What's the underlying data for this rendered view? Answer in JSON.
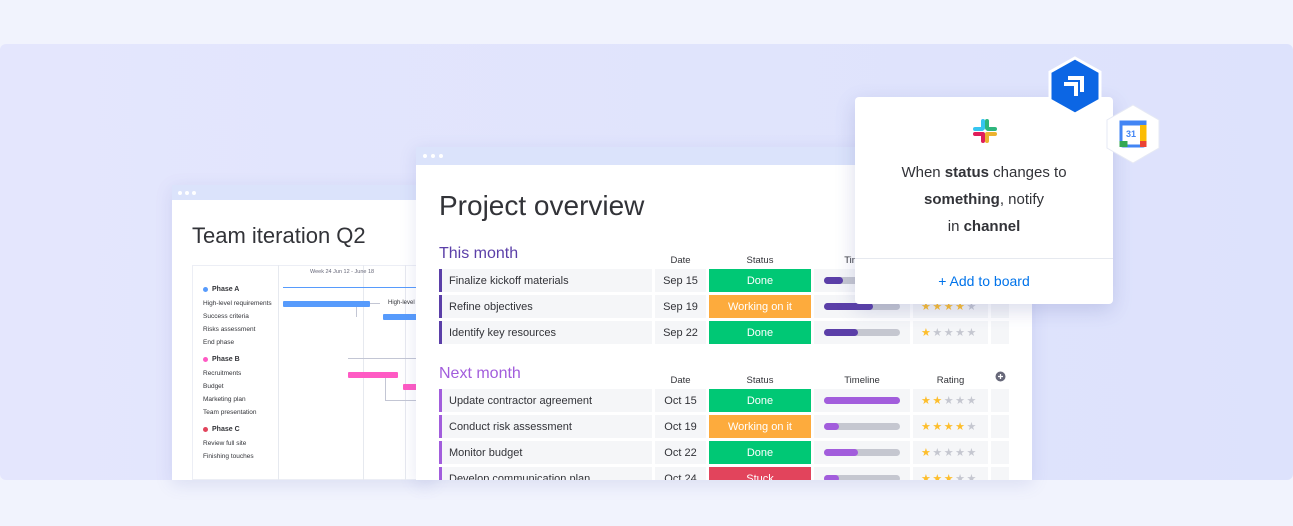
{
  "left_window": {
    "title": "Team iteration Q2",
    "week_label": "Week 24 Jun 12 - June 18",
    "bar_label": "High-level",
    "phases": [
      {
        "name": "Phase A",
        "color": "#579bfc",
        "tasks": [
          "High-level requirements",
          "Success criteria",
          "Risks assessment",
          "End phase"
        ]
      },
      {
        "name": "Phase B",
        "color": "#ff5ac4",
        "tasks": [
          "Recruitments",
          "Budget",
          "Marketing plan",
          "Team presentation"
        ]
      },
      {
        "name": "Phase C",
        "color": "#e2445c",
        "tasks": [
          "Review full site",
          "Finishing touches"
        ]
      }
    ]
  },
  "main_window": {
    "title": "Project overview",
    "groups": [
      {
        "name": "This month",
        "color": "#5b3fa8",
        "timeline_color": "#5b3fa8",
        "columns": [
          "Date",
          "Status",
          "Timeline"
        ],
        "rows": [
          {
            "task": "Finalize kickoff materials",
            "date": "Sep 15",
            "status": "Done",
            "timeline": 0.25,
            "rating": null
          },
          {
            "task": "Refine objectives",
            "date": "Sep 19",
            "status": "Working on it",
            "timeline": 0.65,
            "rating": 4
          },
          {
            "task": "Identify key resources",
            "date": "Sep 22",
            "status": "Done",
            "timeline": 0.45,
            "rating": 1
          }
        ]
      },
      {
        "name": "Next month",
        "color": "#a25ddc",
        "timeline_color": "#a25ddc",
        "columns": [
          "Date",
          "Status",
          "Timeline",
          "Rating"
        ],
        "rows": [
          {
            "task": "Update contractor agreement",
            "date": "Oct 15",
            "status": "Done",
            "timeline": 1.0,
            "rating": 2
          },
          {
            "task": "Conduct risk assessment",
            "date": "Oct 19",
            "status": "Working on it",
            "timeline": 0.2,
            "rating": 4
          },
          {
            "task": "Monitor budget",
            "date": "Oct 22",
            "status": "Done",
            "timeline": 0.45,
            "rating": 1
          },
          {
            "task": "Develop communication plan",
            "date": "Oct 24",
            "status": "Stuck",
            "timeline": 0.2,
            "rating": 3
          }
        ]
      }
    ]
  },
  "status_colors": {
    "Done": "#00c875",
    "Working on it": "#fdab3d",
    "Stuck": "#e2445c"
  },
  "rating_max": 5,
  "popup": {
    "lines": [
      [
        {
          "text": "When ",
          "bold": false
        },
        {
          "text": "status",
          "bold": true
        },
        {
          "text": " changes to",
          "bold": false
        }
      ],
      [
        {
          "text": "something",
          "bold": true
        },
        {
          "text": ", notify",
          "bold": false
        }
      ],
      [
        {
          "text": "in ",
          "bold": false
        },
        {
          "text": "channel",
          "bold": true
        }
      ]
    ],
    "action": "+ Add to board"
  }
}
